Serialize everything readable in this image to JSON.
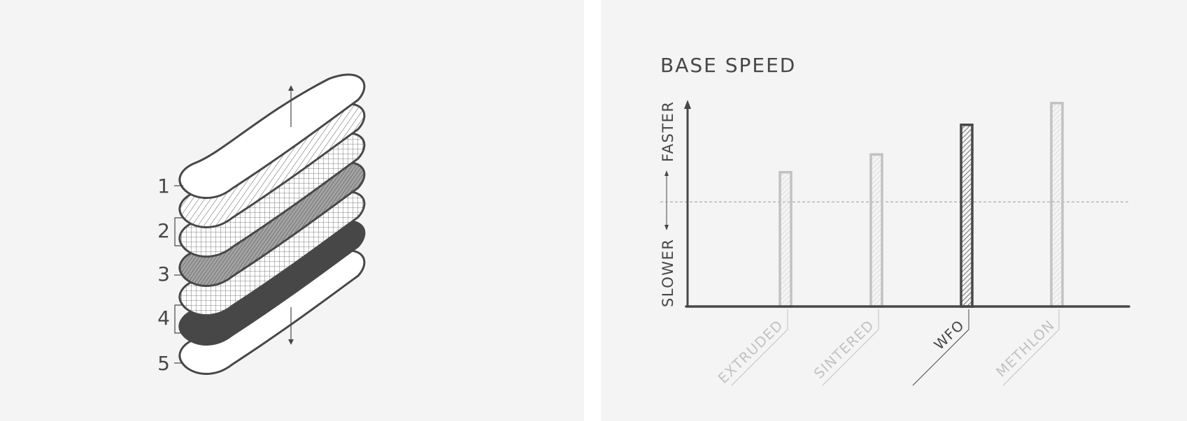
{
  "layer_diagram": {
    "labels": [
      "1",
      "2",
      "3",
      "4",
      "5"
    ],
    "colors": {
      "outline": "#474747",
      "fill_dark": "#474747",
      "fill_light": "#ffffff",
      "hatch": "#5a5a5a"
    }
  },
  "chart_data": {
    "type": "bar",
    "title": "BASE SPEED",
    "categories": [
      "EXTRUDED",
      "SINTERED",
      "WFO",
      "METHLON"
    ],
    "values": [
      6.8,
      7.7,
      9.2,
      10.3
    ],
    "highlighted": "WFO",
    "ylim": [
      0,
      10.5
    ],
    "reference_line": 5.3,
    "ylabel_high": "FASTER",
    "ylabel_low": "SLOWER",
    "grid": false,
    "colors": {
      "axis": "#474747",
      "highlight": "#474747",
      "muted": "#c2c2c2",
      "reference": "#9a9a9a"
    }
  }
}
